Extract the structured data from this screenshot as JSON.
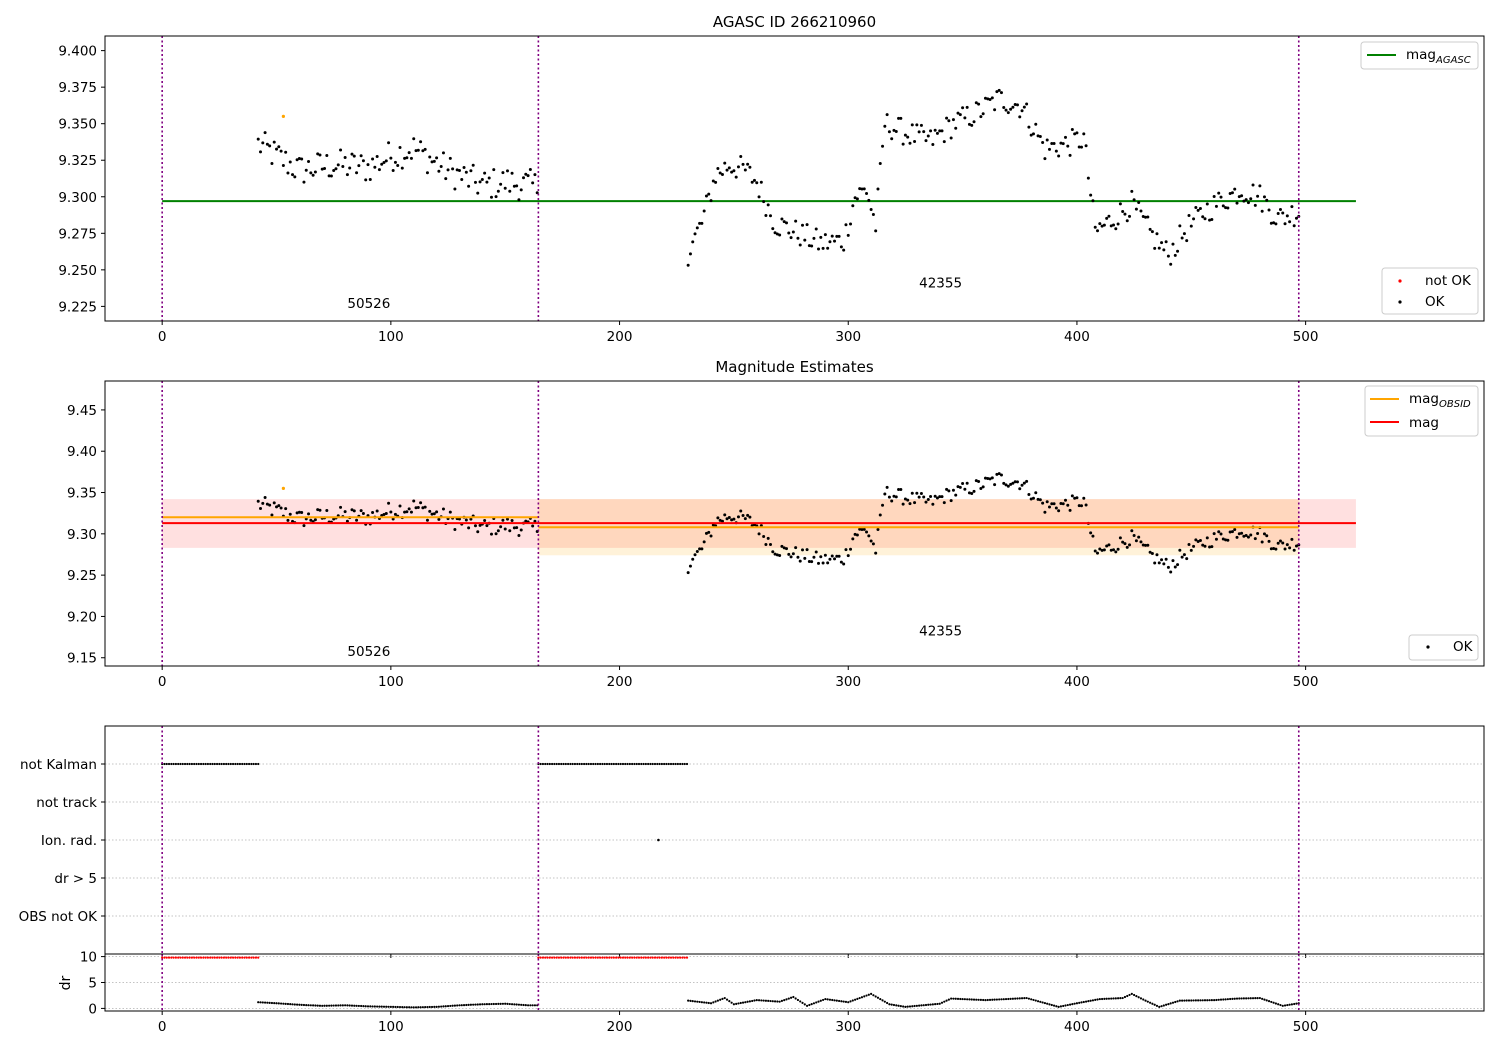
{
  "chart_data": [
    {
      "type": "scatter",
      "title": "AGASC ID 266210960",
      "xlim": [
        -25,
        578
      ],
      "ylim": [
        9.215,
        9.41
      ],
      "xticks": [
        0,
        100,
        200,
        300,
        400,
        500
      ],
      "yticks": [
        "9.225",
        "9.250",
        "9.275",
        "9.300",
        "9.325",
        "9.350",
        "9.375",
        "9.400"
      ],
      "ytick_values": [
        9.225,
        9.25,
        9.275,
        9.3,
        9.325,
        9.35,
        9.375,
        9.4
      ],
      "grid": false,
      "legend_lines": {
        "position": "top-right",
        "entries": [
          {
            "label": "mag",
            "subscript": "AGASC",
            "color": "#008000"
          }
        ]
      },
      "legend_points": {
        "position": "bottom-right",
        "entries": [
          {
            "label": "not OK",
            "color": "#ff0000"
          },
          {
            "label": "OK",
            "color": "#000000"
          }
        ]
      },
      "obs_boundaries": [
        0,
        164.5,
        497
      ],
      "obs_labels": [
        {
          "text": "50526",
          "x": 81,
          "y": 9.224
        },
        {
          "text": "42355",
          "x": 331,
          "y": 9.238
        }
      ],
      "hlines": [
        {
          "name": "mag_AGASC",
          "y": 9.297,
          "x": [
            0,
            522
          ],
          "color": "#008000"
        }
      ],
      "highlight_points": [
        {
          "x": 53,
          "y": 9.355,
          "color": "#ffa500"
        }
      ],
      "series": [
        {
          "name": "OK",
          "color": "#000000",
          "segments": [
            {
              "x": [
                42,
                60,
                75,
                90,
                100,
                110,
                125,
                140,
                150,
                160,
                164
              ],
              "y": [
                9.336,
                9.318,
                9.322,
                9.32,
                9.328,
                9.333,
                9.318,
                9.308,
                9.31,
                9.308,
                9.307
              ],
              "jitter": 0.011
            },
            {
              "x": [
                230,
                236,
                242,
                248,
                255,
                260,
                268,
                278,
                288,
                298,
                303,
                308,
                312,
                316,
                326,
                336,
                346,
                356,
                366,
                376,
                386,
                396,
                403,
                408,
                416,
                424,
                432,
                440,
                448,
                456,
                464,
                472,
                480,
                488,
                497
              ],
              "y": [
                9.262,
                9.282,
                9.315,
                9.322,
                9.318,
                9.31,
                9.282,
                9.275,
                9.268,
                9.27,
                9.3,
                9.305,
                9.28,
                9.35,
                9.343,
                9.338,
                9.35,
                9.357,
                9.367,
                9.362,
                9.333,
                9.336,
                9.34,
                9.276,
                9.285,
                9.295,
                9.275,
                9.26,
                9.278,
                9.29,
                9.298,
                9.305,
                9.3,
                9.285,
                9.29
              ],
              "jitter": 0.009
            }
          ]
        }
      ]
    },
    {
      "type": "scatter",
      "title": "Magnitude Estimates",
      "xlim": [
        -25,
        578
      ],
      "ylim": [
        9.14,
        9.485
      ],
      "xticks": [
        0,
        100,
        200,
        300,
        400,
        500
      ],
      "yticks": [
        "9.15",
        "9.20",
        "9.25",
        "9.30",
        "9.35",
        "9.40",
        "9.45"
      ],
      "ytick_values": [
        9.15,
        9.2,
        9.25,
        9.3,
        9.35,
        9.4,
        9.45
      ],
      "grid": false,
      "legend_lines": {
        "position": "top-right",
        "entries": [
          {
            "label": "mag",
            "subscript": "OBSID",
            "color": "#ffa500"
          },
          {
            "label": "mag",
            "subscript": "",
            "color": "#ff0000"
          }
        ]
      },
      "legend_points": {
        "position": "bottom-right",
        "entries": [
          {
            "label": "OK",
            "color": "#000000"
          }
        ]
      },
      "obs_boundaries": [
        0,
        164.5,
        497
      ],
      "obs_labels": [
        {
          "text": "50526",
          "x": 81,
          "y": 9.152
        },
        {
          "text": "42355",
          "x": 331,
          "y": 9.177
        }
      ],
      "bands": [
        {
          "x": [
            0,
            522
          ],
          "y": [
            9.283,
            9.342
          ],
          "color": "#ff0000",
          "opacity": 0.12
        },
        {
          "x": [
            164.5,
            497
          ],
          "y": [
            9.274,
            9.342
          ],
          "color": "#ffa500",
          "opacity": 0.15
        }
      ],
      "hlines": [
        {
          "name": "mag_OBSID 50526",
          "y": 9.32,
          "x": [
            0,
            164.5
          ],
          "color": "#ffa500"
        },
        {
          "name": "mag_OBSID 42355",
          "y": 9.308,
          "x": [
            164.5,
            497
          ],
          "color": "#ffa500"
        },
        {
          "name": "mag",
          "y": 9.313,
          "x": [
            0,
            522
          ],
          "color": "#ff0000"
        }
      ],
      "highlight_points": [
        {
          "x": 53,
          "y": 9.355,
          "color": "#ffa500"
        }
      ],
      "reuse_points_from": 0
    },
    {
      "type": "scatter",
      "xlim": [
        -25,
        578
      ],
      "xticks": [
        0,
        100,
        200,
        300,
        400,
        500
      ],
      "categories": [
        "not Kalman",
        "not track",
        "Ion. rad.",
        "dr > 5",
        "OBS not OK"
      ],
      "grid": true,
      "obs_boundaries": [
        0,
        164.5,
        497
      ],
      "flags": [
        {
          "category": "not Kalman",
          "ranges": [
            [
              0,
              42
            ],
            [
              164.5,
              230
            ]
          ]
        },
        {
          "category": "not track",
          "ranges": []
        },
        {
          "category": "Ion. rad.",
          "points": [
            217
          ]
        },
        {
          "category": "dr > 5",
          "ranges": []
        },
        {
          "category": "OBS not OK",
          "ranges": []
        }
      ]
    },
    {
      "type": "scatter",
      "ylabel": "dr",
      "xlim": [
        -25,
        578
      ],
      "ylim": [
        -0.5,
        10.5
      ],
      "xticks": [
        0,
        100,
        200,
        300,
        400,
        500
      ],
      "yticks": [
        "0",
        "5",
        "10"
      ],
      "ytick_values": [
        0,
        5,
        10
      ],
      "grid": true,
      "obs_boundaries": [
        0,
        164.5,
        497
      ],
      "clipped": {
        "value": 9.8,
        "color": "#ff0000",
        "ranges": [
          [
            0,
            42
          ],
          [
            164.5,
            230
          ]
        ]
      },
      "series": [
        {
          "name": "dr",
          "color": "#000000",
          "x": [
            42,
            50,
            60,
            70,
            80,
            90,
            100,
            110,
            120,
            130,
            140,
            150,
            160,
            164,
            230,
            240,
            246,
            250,
            260,
            270,
            276,
            282,
            290,
            300,
            310,
            318,
            325,
            330,
            340,
            345,
            360,
            378,
            392,
            400,
            410,
            420,
            424,
            430,
            436,
            445,
            460,
            470,
            480,
            490,
            497
          ],
          "y": [
            1.2,
            1.0,
            0.7,
            0.5,
            0.6,
            0.4,
            0.3,
            0.2,
            0.3,
            0.6,
            0.8,
            0.9,
            0.6,
            0.6,
            1.5,
            1.0,
            2.0,
            0.8,
            1.6,
            1.3,
            2.2,
            0.5,
            1.8,
            1.2,
            2.8,
            0.8,
            0.3,
            0.5,
            0.9,
            1.9,
            1.6,
            2.0,
            0.3,
            1.0,
            1.8,
            2.0,
            2.8,
            1.5,
            0.3,
            1.5,
            1.6,
            1.9,
            2.0,
            0.5,
            1.0
          ]
        }
      ]
    }
  ]
}
